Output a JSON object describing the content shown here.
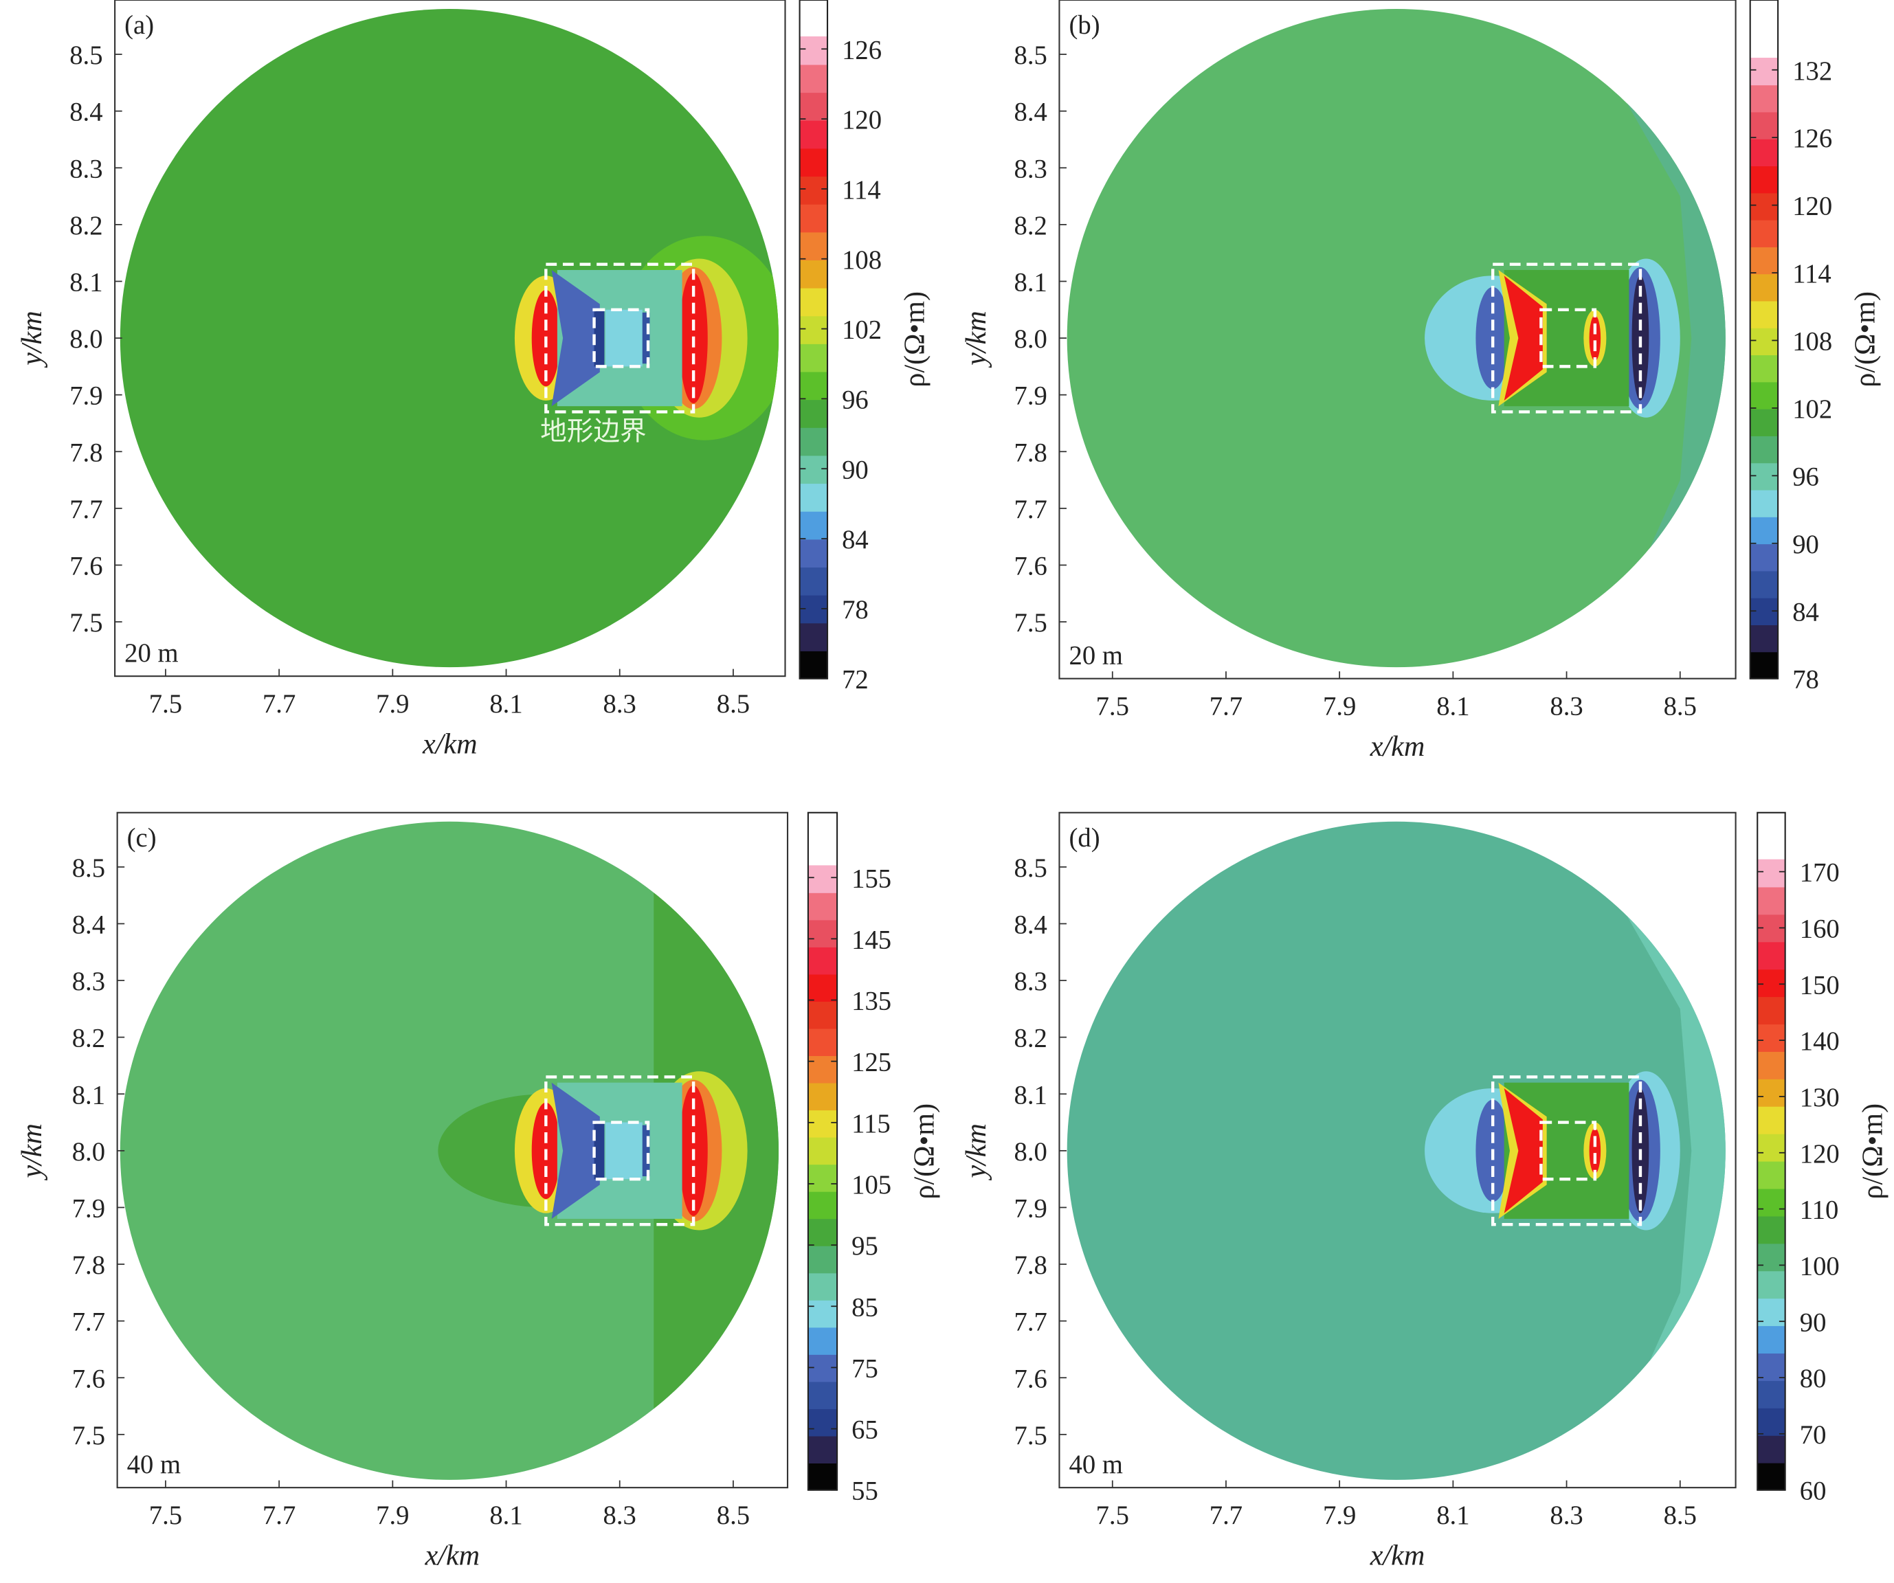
{
  "chart_data": {
    "type": "heatmap",
    "xlabel": "x/km",
    "ylabel": "y/km",
    "xlim": [
      7.41,
      8.59
    ],
    "ylim": [
      7.404,
      8.596
    ],
    "xticks": [
      "7.5",
      "7.7",
      "7.9",
      "8.1",
      "8.3",
      "8.5"
    ],
    "yticks": [
      "8.5",
      "8.4",
      "8.3",
      "8.2",
      "8.1",
      "8.0",
      "7.9",
      "7.8",
      "7.7",
      "7.6",
      "7.5"
    ],
    "colorbar_label": "ρ/(Ω•m)",
    "annotation": "地形边界",
    "palette": [
      "#050505",
      "#2a2450",
      "#263f8c",
      "#3352a0",
      "#4a66b8",
      "#4f9ee0",
      "#7fd4e0",
      "#6cc8a8",
      "#52b070",
      "#47a83a",
      "#5cc02a",
      "#8cd43a",
      "#c8dc30",
      "#e8dc30",
      "#e8a820",
      "#f08030",
      "#f05030",
      "#e83820",
      "#f01818",
      "#f02840",
      "#e85060",
      "#f07080",
      "#f8b0c8"
    ],
    "panels": [
      {
        "label": "(a)",
        "depth": "20 m",
        "cb_ticks": [
          "72",
          "78",
          "84",
          "90",
          "96",
          "102",
          "108",
          "114",
          "120",
          "126"
        ],
        "cb_range": [
          72,
          130.2
        ],
        "background": "#47a83a",
        "side": "#5cc02a"
      },
      {
        "label": "(b)",
        "depth": "20 m",
        "cb_ticks": [
          "78",
          "84",
          "90",
          "96",
          "102",
          "108",
          "114",
          "120",
          "126",
          "132"
        ],
        "cb_range": [
          78,
          138.2
        ],
        "background": "#5cb86a",
        "side": "#5ab48a"
      },
      {
        "label": "(c)",
        "depth": "40 m",
        "cb_ticks": [
          "55",
          "65",
          "75",
          "85",
          "95",
          "105",
          "115",
          "125",
          "135",
          "145",
          "155"
        ],
        "cb_range": [
          55,
          165.6
        ],
        "background": "#5cb86a",
        "side": "#4aa83e"
      },
      {
        "label": "(d)",
        "depth": "40 m",
        "cb_ticks": [
          "60",
          "70",
          "80",
          "90",
          "100",
          "110",
          "120",
          "130",
          "140",
          "150",
          "160",
          "170"
        ],
        "cb_range": [
          60,
          180.5
        ],
        "background": "#58b496",
        "side": "#6cc8b0"
      }
    ]
  }
}
